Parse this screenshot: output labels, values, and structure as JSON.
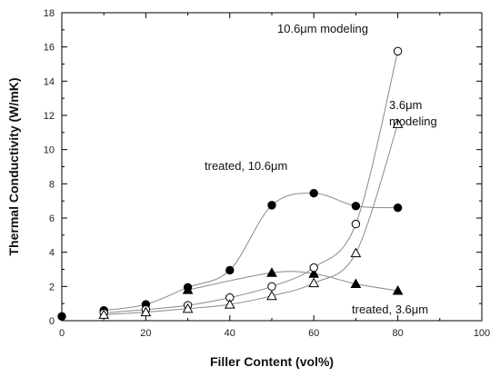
{
  "chart_data": {
    "type": "scatter",
    "xlabel": "Filler Content (vol%)",
    "ylabel": "Thermal Conductivity (W/mK)",
    "xlim": [
      0,
      100
    ],
    "ylim": [
      0,
      18
    ],
    "xticks": [
      0,
      20,
      40,
      60,
      80,
      100
    ],
    "yticks": [
      0,
      2,
      4,
      6,
      8,
      10,
      12,
      14,
      16,
      18
    ],
    "grid": false,
    "series": [
      {
        "name": "treated, 10.6μm",
        "marker": "filled-circle",
        "color": "#000000",
        "x": [
          0,
          10,
          20,
          30,
          40,
          50,
          60,
          70,
          80
        ],
        "y": [
          0.25,
          0.6,
          0.95,
          1.95,
          2.95,
          6.75,
          7.45,
          6.7,
          6.6
        ]
      },
      {
        "name": "treated, 3.6μm",
        "marker": "filled-triangle",
        "color": "#000000",
        "x": [
          30,
          50,
          60,
          70,
          80
        ],
        "y": [
          1.8,
          2.8,
          2.75,
          2.15,
          1.75
        ]
      },
      {
        "name": "10.6μm modeling",
        "marker": "open-circle",
        "color": "#000000",
        "x": [
          10,
          20,
          30,
          40,
          50,
          60,
          70,
          80
        ],
        "y": [
          0.45,
          0.65,
          0.9,
          1.35,
          2.0,
          3.1,
          5.65,
          15.75
        ]
      },
      {
        "name": "3.6μm modeling",
        "marker": "open-triangle",
        "color": "#000000",
        "x": [
          10,
          20,
          30,
          40,
          50,
          60,
          70,
          80
        ],
        "y": [
          0.35,
          0.5,
          0.7,
          0.95,
          1.45,
          2.2,
          3.95,
          11.5
        ]
      }
    ],
    "annotations": [
      {
        "key": "modeling106",
        "text": "10.6μm modeling"
      },
      {
        "key": "modeling36a",
        "text": "3.6μm"
      },
      {
        "key": "modeling36b",
        "text": "modeling"
      },
      {
        "key": "treated106",
        "text": "treated, 10.6μm"
      },
      {
        "key": "treated36",
        "text": "treated, 3.6μm"
      }
    ]
  }
}
